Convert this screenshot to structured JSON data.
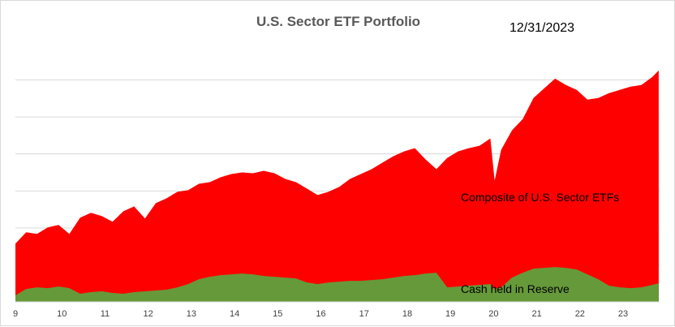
{
  "chart_data": {
    "type": "area",
    "title": "U.S. Sector ETF Portfolio",
    "date_label": "12/31/2023",
    "x": [
      9.0,
      9.25,
      9.5,
      9.75,
      10.0,
      10.25,
      10.5,
      10.75,
      11.0,
      11.25,
      11.5,
      11.75,
      12.0,
      12.25,
      12.5,
      12.75,
      13.0,
      13.25,
      13.5,
      13.75,
      14.0,
      14.25,
      14.5,
      14.75,
      15.0,
      15.25,
      15.5,
      15.75,
      16.0,
      16.25,
      16.5,
      16.75,
      17.0,
      17.25,
      17.5,
      17.75,
      18.0,
      18.25,
      18.5,
      18.75,
      19.0,
      19.25,
      19.5,
      19.75,
      20.0,
      20.1,
      20.25,
      20.5,
      20.75,
      21.0,
      21.25,
      21.5,
      21.75,
      22.0,
      22.25,
      22.5,
      22.75,
      23.0,
      23.25,
      23.5,
      23.75,
      23.9
    ],
    "xticks": [
      "9",
      "10",
      "11",
      "12",
      "13",
      "14",
      "15",
      "16",
      "17",
      "18",
      "19",
      "20",
      "21",
      "22",
      "23"
    ],
    "xlim": [
      9.0,
      23.92
    ],
    "ylim": [
      0,
      320
    ],
    "gridlines": [
      0,
      45.7,
      91.4,
      137.1,
      182.9,
      228.6,
      274.3
    ],
    "series": [
      {
        "name": "Composite of U.S. Sector ETFs",
        "color": "#ff0000",
        "values": [
          72,
          86,
          84,
          92,
          95,
          84,
          104,
          110,
          106,
          99,
          112,
          118,
          103,
          122,
          128,
          136,
          138,
          146,
          148,
          154,
          158,
          160,
          159,
          162,
          159,
          152,
          148,
          140,
          132,
          136,
          142,
          152,
          158,
          164,
          172,
          180,
          186,
          190,
          176,
          164,
          178,
          186,
          190,
          193,
          202,
          150,
          188,
          212,
          226,
          252,
          264,
          276,
          268,
          262,
          250,
          252,
          258,
          262,
          266,
          268,
          278,
          286
        ]
      },
      {
        "name": "Cash held in Reserve",
        "color": "#66993a",
        "values": [
          8,
          16,
          18,
          17,
          19,
          17,
          10,
          12,
          13,
          11,
          10,
          12,
          13,
          14,
          15,
          18,
          22,
          28,
          31,
          33,
          34,
          35,
          34,
          32,
          31,
          30,
          29,
          24,
          22,
          24,
          25,
          26,
          26,
          27,
          28,
          30,
          32,
          33,
          35,
          36,
          18,
          19,
          20,
          21,
          22,
          16,
          18,
          30,
          36,
          41,
          42,
          43,
          42,
          40,
          34,
          28,
          20,
          18,
          17,
          18,
          21,
          23
        ]
      }
    ],
    "series_labels": [
      "Composite of U.S. Sector ETFs",
      "Cash held in Reserve"
    ]
  }
}
